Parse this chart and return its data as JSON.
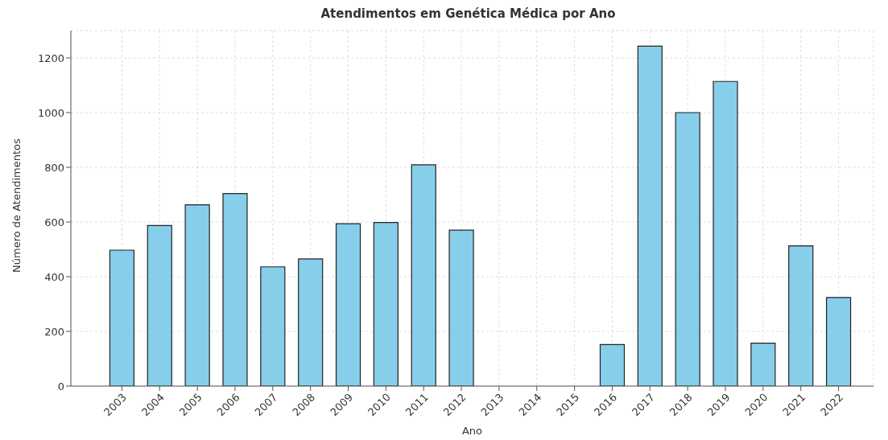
{
  "chart_data": {
    "type": "bar",
    "title": "Atendimentos em Genética Médica por Ano",
    "xlabel": "Ano",
    "ylabel": "Número de Atendimentos",
    "categories": [
      "2003",
      "2004",
      "2005",
      "2006",
      "2007",
      "2008",
      "2009",
      "2010",
      "2011",
      "2012",
      "2013",
      "2014",
      "2015",
      "2016",
      "2017",
      "2018",
      "2019",
      "2020",
      "2021",
      "2022"
    ],
    "values": [
      497,
      587,
      663,
      704,
      436,
      465,
      594,
      598,
      809,
      570,
      0,
      0,
      0,
      152,
      1243,
      1000,
      1114,
      157,
      513,
      324
    ],
    "color": "#87ceeb",
    "ylim": [
      0,
      1300
    ],
    "yticks": [
      0,
      200,
      400,
      600,
      800,
      1000,
      1200
    ],
    "grid": true
  }
}
